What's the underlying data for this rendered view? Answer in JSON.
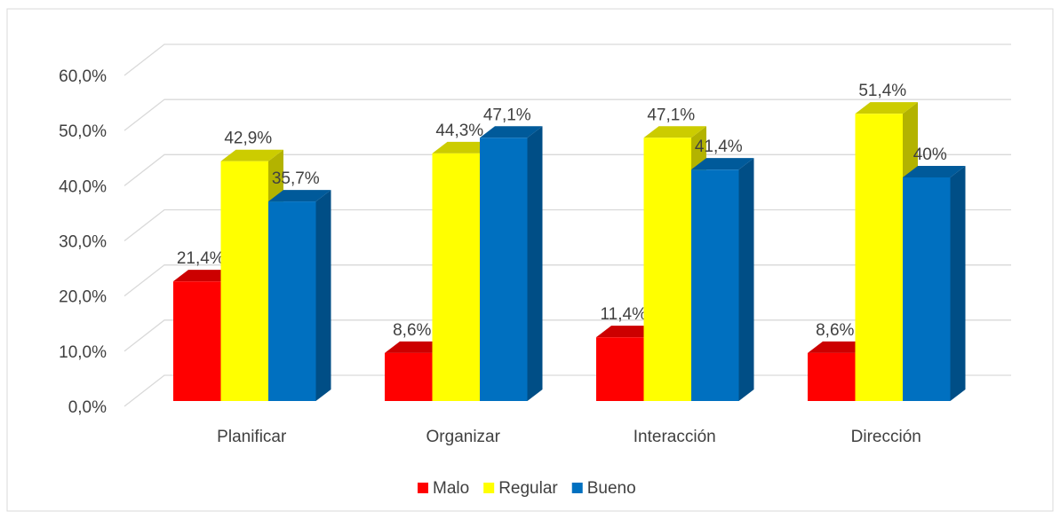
{
  "chart_data": {
    "type": "bar3d",
    "categories": [
      "Planificar",
      "Organizar",
      "Interacción",
      "Dirección"
    ],
    "series": [
      {
        "name": "Malo",
        "color": "#ff0000",
        "values": [
          21.4,
          8.6,
          11.4,
          8.6
        ],
        "value_labels": [
          "21,4%",
          "8,6%",
          "11,4%",
          "8,6%"
        ]
      },
      {
        "name": "Regular",
        "color": "#ffff00",
        "values": [
          42.9,
          44.3,
          47.1,
          51.4
        ],
        "value_labels": [
          "42,9%",
          "44,3%",
          "47,1%",
          "51,4%"
        ]
      },
      {
        "name": "Bueno",
        "color": "#0070c0",
        "values": [
          35.7,
          47.1,
          41.4,
          40
        ],
        "value_labels": [
          "35,7%",
          "47,1%",
          "41,4%",
          "40%"
        ]
      }
    ],
    "ylim": [
      0,
      60
    ],
    "yticks": [
      {
        "value": 0,
        "label": "0,0%"
      },
      {
        "value": 10,
        "label": "10,0%"
      },
      {
        "value": 20,
        "label": "20,0%"
      },
      {
        "value": 30,
        "label": "30,0%"
      },
      {
        "value": 40,
        "label": "40,0%"
      },
      {
        "value": 50,
        "label": "50,0%"
      },
      {
        "value": 60,
        "label": "60,0%"
      }
    ],
    "grid": true,
    "legend": "bottom"
  }
}
